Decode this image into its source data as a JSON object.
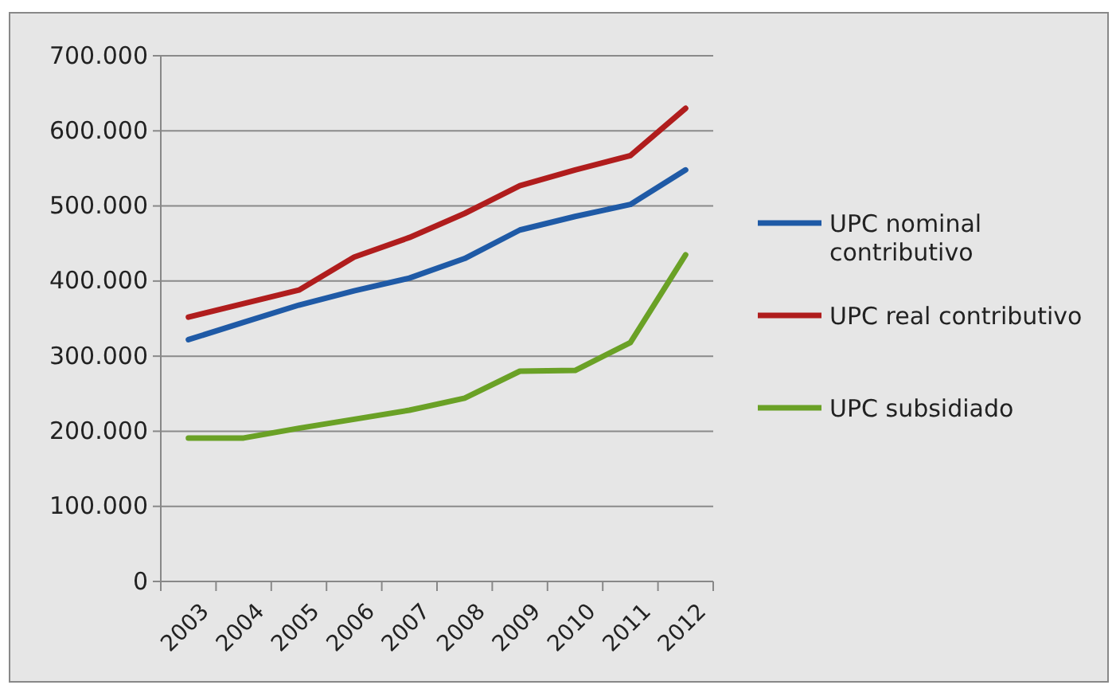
{
  "chart_data": {
    "type": "line",
    "categories": [
      "2003",
      "2004",
      "2005",
      "2006",
      "2007",
      "2008",
      "2009",
      "2010",
      "2011",
      "2012"
    ],
    "series": [
      {
        "name": "UPC nominal contributivo",
        "color": "#1f5aa6",
        "values": [
          322000,
          345000,
          368000,
          387000,
          404000,
          430000,
          468000,
          486000,
          502000,
          548000
        ]
      },
      {
        "name": "UPC real contributivo",
        "color": "#b01d1d",
        "values": [
          352000,
          370000,
          388000,
          432000,
          458000,
          490000,
          527000,
          548000,
          567000,
          630000
        ]
      },
      {
        "name": "UPC subsidiado",
        "color": "#6aa126",
        "values": [
          191000,
          191000,
          204000,
          216000,
          228000,
          244000,
          280000,
          281000,
          318000,
          435000
        ]
      }
    ],
    "ylim": [
      0,
      700000
    ],
    "yticks": [
      {
        "value": 0,
        "label": "0"
      },
      {
        "value": 100000,
        "label": "100.000"
      },
      {
        "value": 200000,
        "label": "200.000"
      },
      {
        "value": 300000,
        "label": "300.000"
      },
      {
        "value": 400000,
        "label": "400.000"
      },
      {
        "value": 500000,
        "label": "500.000"
      },
      {
        "value": 600000,
        "label": "600.000"
      },
      {
        "value": 700000,
        "label": "700.000"
      }
    ],
    "grid": "y",
    "legend": "right",
    "marker": "none",
    "line_style": "solid"
  }
}
